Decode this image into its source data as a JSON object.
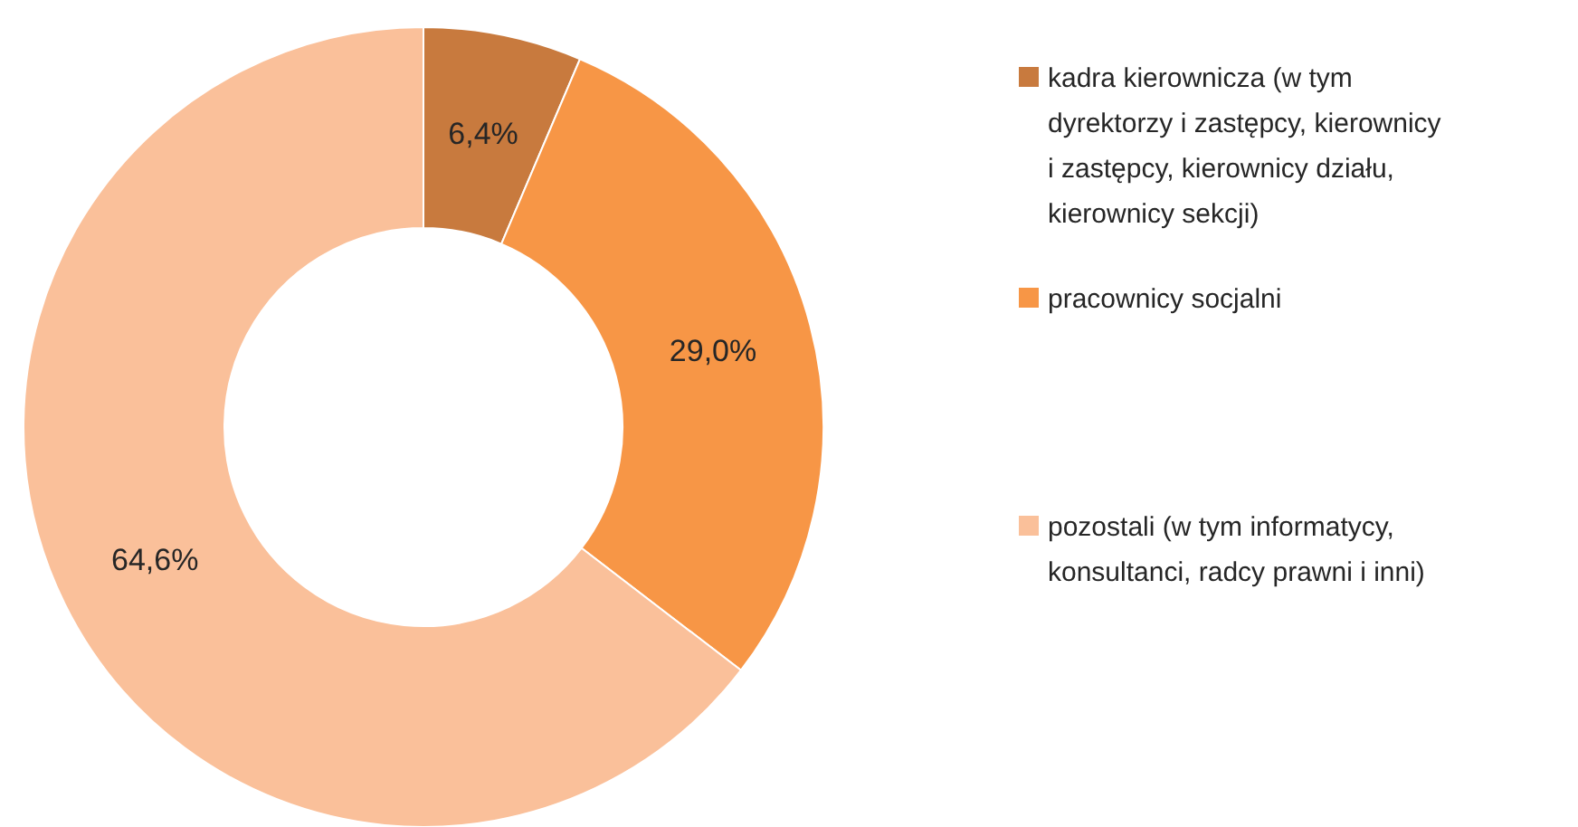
{
  "chart_data": {
    "type": "donut",
    "categories": [
      "kadra kierownicza (w tym dyrektorzy i zastępcy, kierownicy i zastępcy, kierownicy działu, kierownicy sekcji)",
      "pracownicy socjalni",
      "pozostali (w tym informatycy, konsultanci, radcy prawni i inni)"
    ],
    "values": [
      6.4,
      29.0,
      64.6
    ],
    "colors": [
      "#c87a3e",
      "#f79646",
      "#fac09a"
    ],
    "value_labels": [
      "6,4%",
      "29,0%",
      "64,6%"
    ],
    "legend": "right"
  }
}
